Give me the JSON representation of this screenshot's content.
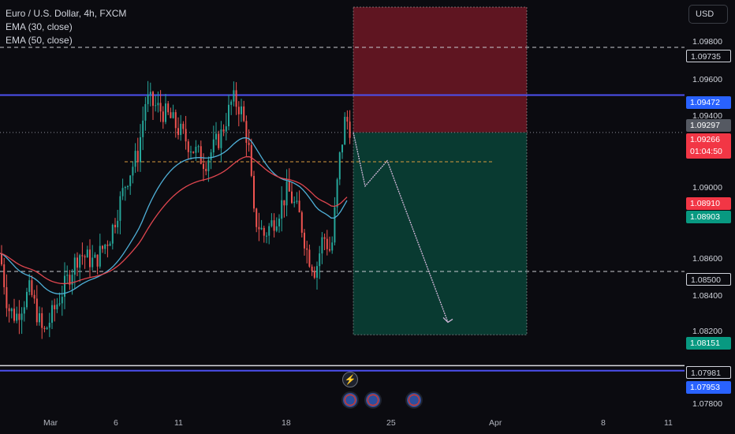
{
  "header": {
    "symbol_line": "Euro / U.S. Dollar, 4h, FXCM",
    "indicators": [
      "EMA (30, close)",
      "EMA (50, close)"
    ]
  },
  "toolbar": {
    "currency_label": "USD"
  },
  "price_axis": {
    "ticks": [
      "1.09800",
      "1.09600",
      "1.09400",
      "1.09000",
      "1.08600",
      "1.08400",
      "1.08200",
      "1.07800"
    ],
    "labels": {
      "level_top": "1.09735",
      "level_blue_upper": "1.09472",
      "prev_close": "1.09297",
      "last_price": "1.09266",
      "countdown": "01:04:50",
      "ema_red": "1.08910",
      "ema_green": "1.08903",
      "level_low": "1.08500",
      "target": "1.08151",
      "level_white_lower": "1.07981",
      "level_blue_lower": "1.07953"
    }
  },
  "time_axis": {
    "ticks": [
      "Mar",
      "6",
      "11",
      "18",
      "25",
      "Apr",
      "8",
      "11"
    ]
  },
  "chart_data": {
    "type": "candlestick",
    "title": "Euro / U.S. Dollar, 4h, FXCM",
    "ylim": [
      1.0775,
      1.0995
    ],
    "position": {
      "kind": "short",
      "entry": 1.09266,
      "stop": 1.0999,
      "target": 1.08151
    },
    "levels": [
      1.09735,
      1.09472,
      1.085,
      1.07981,
      1.07953
    ],
    "projection_path": [
      1.09266,
      1.0897,
      1.0911,
      1.0822
    ],
    "colors": {
      "up": "#26a69a",
      "down": "#ef5350",
      "level_blue": "#4c50f0",
      "ema_30": "#4fb0d8",
      "ema_50": "#e0464f"
    }
  }
}
